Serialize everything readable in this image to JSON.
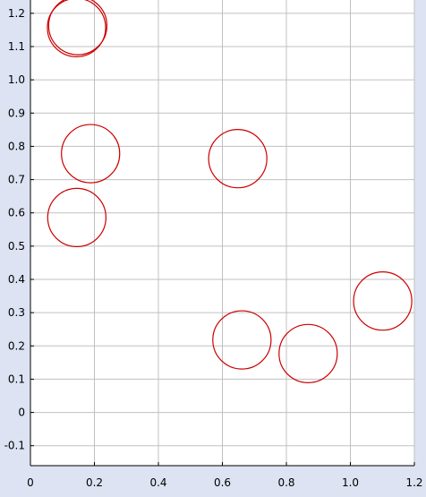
{
  "chart_data": {
    "type": "scatter",
    "title": "",
    "xlabel": "",
    "ylabel": "",
    "xlim": [
      0,
      1.2
    ],
    "ylim": [
      -0.16,
      1.24
    ],
    "grid": true,
    "x_ticks": [
      "0",
      "0.2",
      "0.4",
      "0.6",
      "0.8",
      "1.0",
      "1.2"
    ],
    "y_ticks": [
      "-0.1",
      "0",
      "0.1",
      "0.2",
      "0.3",
      "0.4",
      "0.5",
      "0.6",
      "0.7",
      "0.8",
      "0.9",
      "1.0",
      "1.1",
      "1.2"
    ],
    "marker": "circle",
    "marker_color": "#cc0000",
    "circle_radius": 0.091,
    "series": [
      {
        "x": [
          0.148,
          0.144,
          0.188,
          0.145,
          0.648,
          0.661,
          0.868,
          1.101
        ],
        "y": [
          1.163,
          1.157,
          0.778,
          0.586,
          0.763,
          0.218,
          0.177,
          0.335
        ]
      }
    ]
  },
  "colors": {
    "figure_background": "#dde3f3",
    "plot_background": "#ffffff",
    "grid": "#c0c0c0",
    "axis": "#000000"
  }
}
